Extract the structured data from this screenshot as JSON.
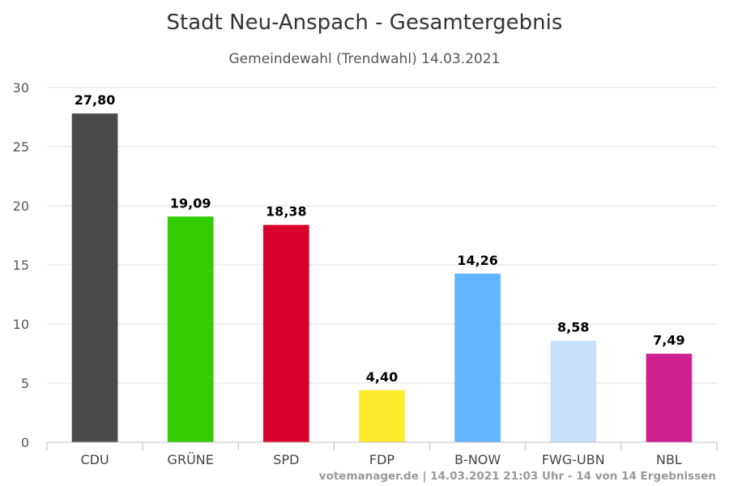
{
  "chart_data": {
    "type": "bar",
    "title": "Stadt Neu-Anspach - Gesamtergebnis",
    "subtitle": "Gemeindewahl (Trendwahl) 14.03.2021",
    "categories": [
      "CDU",
      "GRÜNE",
      "SPD",
      "FDP",
      "B-NOW",
      "FWG-UBN",
      "NBL"
    ],
    "values": [
      27.8,
      19.09,
      18.38,
      4.4,
      14.26,
      8.58,
      7.49
    ],
    "value_labels": [
      "27,80",
      "19,09",
      "18,38",
      "4,40",
      "14,26",
      "8,58",
      "7,49"
    ],
    "colors": [
      "#4a4a4a",
      "#33cc00",
      "#d9002b",
      "#fcea2d",
      "#64b5ff",
      "#c6e0fc",
      "#cf1f8f"
    ],
    "ylim": [
      0,
      30
    ],
    "yticks": [
      0,
      5,
      10,
      15,
      20,
      25,
      30
    ],
    "grid": true,
    "legend": "none",
    "xlabel": "",
    "ylabel": ""
  },
  "credits": "votemanager.de | 14.03.2021 21:03 Uhr - 14 von 14 Ergebnissen"
}
